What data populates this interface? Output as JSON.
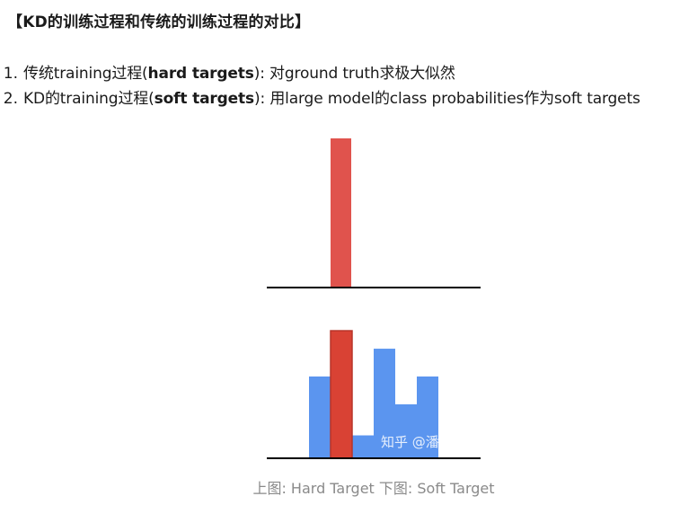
{
  "title": "【KD的训练过程和传统的训练过程的对比】",
  "list": [
    {
      "num": "1.",
      "prefix": "传统training过程(",
      "bold": "hard targets",
      "suffix": "): 对ground truth求极大似然"
    },
    {
      "num": "2.",
      "prefix": "KD的training过程(",
      "bold": "soft targets",
      "suffix": "): 用large model的class probabilities作为soft targets"
    }
  ],
  "figure": {
    "watermark": "知乎 @潘小小",
    "caption": "上图: Hard Target 下图: Soft Target",
    "hard_target": {
      "values": [
        1.0
      ],
      "color": "#e0534d"
    },
    "soft_target": {
      "values": [
        0.5,
        0.78,
        0.14,
        0.67,
        0.33,
        0.5
      ],
      "highlight_index": 1,
      "colors": {
        "base": "#5b95ef",
        "highlight": "#d94234",
        "highlight_border": "#b8352a"
      }
    }
  }
}
